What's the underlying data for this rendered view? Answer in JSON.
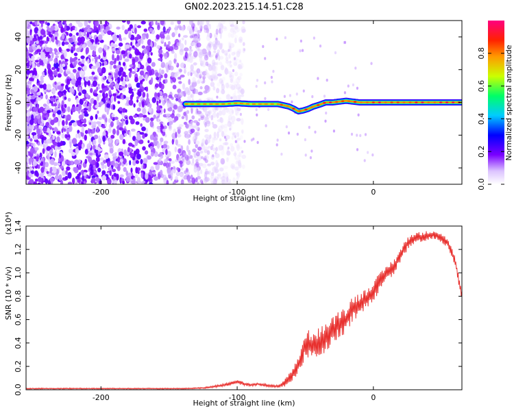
{
  "figure": {
    "title": "GN02.2023.215.14.51.C28"
  },
  "chart_data": [
    {
      "type": "heatmap",
      "xlabel": "Height of straight line (km)",
      "ylabel": "Frequency (Hz)",
      "xlim": [
        -255,
        65
      ],
      "ylim": [
        -50,
        50
      ],
      "xticks": [
        -200,
        -100,
        0
      ],
      "yticks": [
        -40,
        -20,
        0,
        20,
        40
      ],
      "ytick_labels": [
        "-40",
        "-20",
        "0",
        "20",
        "40"
      ],
      "colorbar": {
        "label": "Normalized spectral amplitude",
        "range": [
          0.0,
          1.0
        ],
        "ticks": [
          0.0,
          0.2,
          0.4,
          0.6,
          0.8
        ],
        "tick_labels": [
          "0.0",
          "0.2",
          "0.4",
          "0.6",
          "0.8"
        ],
        "colormap": "rainbow (white-violet-blue-cyan-green-yellow-orange-red-magenta)"
      },
      "noise_region_x": [
        -255,
        -115
      ],
      "signal_trace": {
        "x": [
          -138,
          -125,
          -110,
          -100,
          -90,
          -80,
          -70,
          -62,
          -58,
          -55,
          -52,
          -48,
          -44,
          -40,
          -35,
          -30,
          -25,
          -20,
          -15,
          -10,
          0,
          10,
          20,
          30,
          40,
          50,
          60,
          65
        ],
        "y": [
          -1,
          -1,
          -1,
          -0.5,
          -1,
          -1,
          -1,
          -2.5,
          -4,
          -5.5,
          -5,
          -4,
          -2.5,
          -1.5,
          0,
          0,
          0.5,
          1,
          0.5,
          0,
          0,
          0,
          0,
          0,
          0,
          0,
          0,
          0
        ],
        "peak_amplitude": 0.95
      },
      "grid": false
    },
    {
      "type": "line",
      "xlabel": "Height of straight line (km)",
      "ylabel": "SNR (10 * v/v)",
      "y_multiplier_label": "(x10⁴)",
      "xlim": [
        -255,
        65
      ],
      "ylim": [
        0,
        1.4
      ],
      "xticks": [
        -200,
        -100,
        0
      ],
      "yticks": [
        0.0,
        0.2,
        0.4,
        0.6,
        0.8,
        1.0,
        1.2,
        1.4
      ],
      "ytick_labels": [
        "0.0",
        "0.2",
        "0.4",
        "0.6",
        "0.8",
        "1.0",
        "1.2",
        "1.4"
      ],
      "series": [
        {
          "color": "#e8302e",
          "x": [
            -255,
            -240,
            -220,
            -200,
            -180,
            -160,
            -140,
            -125,
            -115,
            -105,
            -100,
            -95,
            -90,
            -85,
            -80,
            -75,
            -70,
            -66,
            -62,
            -58,
            -55,
            -52,
            -50,
            -45,
            -40,
            -35,
            -30,
            -25,
            -20,
            -15,
            -10,
            -5,
            0,
            5,
            10,
            15,
            20,
            25,
            30,
            35,
            40,
            45,
            50,
            55,
            60,
            65
          ],
          "y": [
            0.01,
            0.01,
            0.01,
            0.01,
            0.01,
            0.01,
            0.01,
            0.015,
            0.03,
            0.05,
            0.07,
            0.05,
            0.04,
            0.05,
            0.04,
            0.03,
            0.03,
            0.05,
            0.1,
            0.15,
            0.22,
            0.3,
            0.4,
            0.38,
            0.4,
            0.45,
            0.5,
            0.57,
            0.6,
            0.7,
            0.73,
            0.78,
            0.85,
            0.92,
            1.0,
            1.05,
            1.15,
            1.25,
            1.3,
            1.3,
            1.32,
            1.33,
            1.3,
            1.25,
            1.1,
            0.8
          ],
          "noise_amplitude": [
            0.005,
            0.005,
            0.005,
            0.005,
            0.005,
            0.005,
            0.005,
            0.006,
            0.01,
            0.015,
            0.02,
            0.015,
            0.012,
            0.012,
            0.012,
            0.012,
            0.012,
            0.03,
            0.05,
            0.06,
            0.07,
            0.1,
            0.12,
            0.12,
            0.13,
            0.13,
            0.12,
            0.12,
            0.12,
            0.11,
            0.1,
            0.09,
            0.09,
            0.08,
            0.07,
            0.07,
            0.06,
            0.06,
            0.05,
            0.05,
            0.04,
            0.04,
            0.04,
            0.04,
            0.04,
            0.04
          ]
        }
      ],
      "grid": false
    }
  ]
}
